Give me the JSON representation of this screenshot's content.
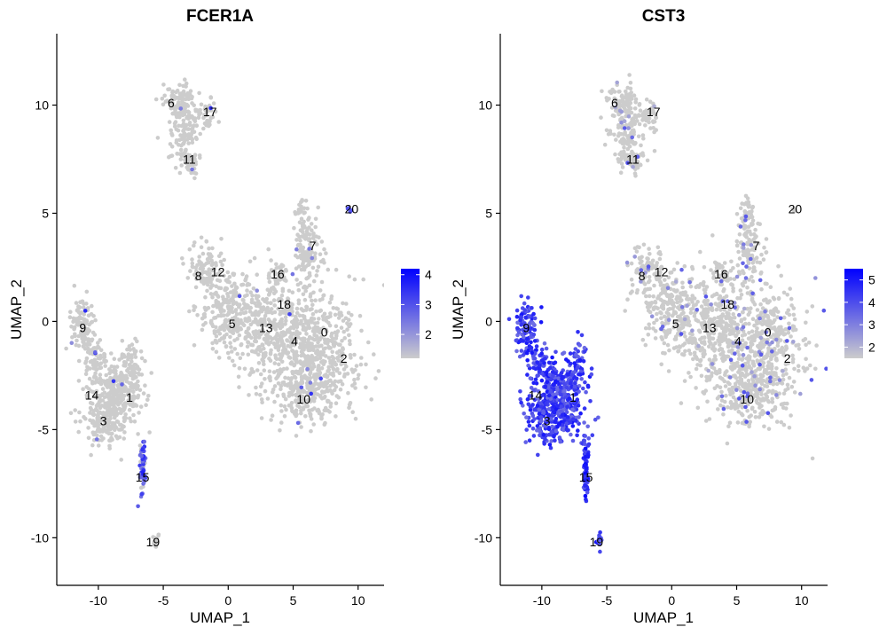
{
  "chart_data": [
    {
      "type": "scatter",
      "title": "FCER1A",
      "xlabel": "UMAP_1",
      "ylabel": "UMAP_2",
      "xlim": [
        -13.2,
        12
      ],
      "ylim": [
        -12.2,
        13.3
      ],
      "xticks": [
        -10,
        -5,
        0,
        5,
        10
      ],
      "yticks": [
        -10,
        -5,
        0,
        5,
        10
      ],
      "xtick_labels": [
        "-10",
        "-5",
        "0",
        "5",
        "10"
      ],
      "ytick_labels": [
        "-10",
        "-5",
        "0",
        "5",
        "10"
      ],
      "grid": false,
      "color_low": "#cccccc",
      "color_high": "#0000ff",
      "legend": {
        "position": "right",
        "min": 1.2,
        "max": 4.2,
        "ticks": [
          2,
          3,
          4
        ],
        "tick_labels": [
          "2",
          "3",
          "4"
        ]
      },
      "clusters": [
        {
          "label": "0",
          "x": 7.4,
          "y": -0.5
        },
        {
          "label": "1",
          "x": -7.6,
          "y": -3.5
        },
        {
          "label": "2",
          "x": 8.9,
          "y": -1.7
        },
        {
          "label": "3",
          "x": -9.6,
          "y": -4.6
        },
        {
          "label": "4",
          "x": 5.1,
          "y": -0.9
        },
        {
          "label": "5",
          "x": 0.3,
          "y": -0.1
        },
        {
          "label": "6",
          "x": -4.4,
          "y": 10.1
        },
        {
          "label": "7",
          "x": 6.5,
          "y": 3.5
        },
        {
          "label": "8",
          "x": -2.3,
          "y": 2.1
        },
        {
          "label": "9",
          "x": -11.2,
          "y": -0.3
        },
        {
          "label": "10",
          "x": 5.8,
          "y": -3.6
        },
        {
          "label": "11",
          "x": -3.0,
          "y": 7.5
        },
        {
          "label": "12",
          "x": -0.8,
          "y": 2.3
        },
        {
          "label": "13",
          "x": 2.9,
          "y": -0.3
        },
        {
          "label": "14",
          "x": -10.5,
          "y": -3.4
        },
        {
          "label": "15",
          "x": -6.6,
          "y": -7.2
        },
        {
          "label": "16",
          "x": 3.8,
          "y": 2.2
        },
        {
          "label": "17",
          "x": -1.4,
          "y": 9.7
        },
        {
          "label": "18",
          "x": 4.3,
          "y": 0.8
        },
        {
          "label": "19",
          "x": -5.8,
          "y": -10.2
        },
        {
          "label": "20",
          "x": 9.5,
          "y": 5.2
        }
      ]
    },
    {
      "type": "scatter",
      "title": "CST3",
      "xlabel": "UMAP_1",
      "ylabel": "UMAP_2",
      "xlim": [
        -13.2,
        12
      ],
      "ylim": [
        -12.2,
        13.3
      ],
      "xticks": [
        -10,
        -5,
        0,
        5,
        10
      ],
      "yticks": [
        -10,
        -5,
        0,
        5,
        10
      ],
      "xtick_labels": [
        "-10",
        "-5",
        "0",
        "5",
        "10"
      ],
      "ytick_labels": [
        "-10",
        "-5",
        "0",
        "5",
        "10"
      ],
      "grid": false,
      "color_low": "#cccccc",
      "color_high": "#0000ff",
      "legend": {
        "position": "right",
        "min": 1.5,
        "max": 5.5,
        "ticks": [
          2,
          3,
          4,
          5
        ],
        "tick_labels": [
          "2",
          "3",
          "4",
          "5"
        ]
      },
      "clusters": [
        {
          "label": "0",
          "x": 7.4,
          "y": -0.5
        },
        {
          "label": "1",
          "x": -7.6,
          "y": -3.5
        },
        {
          "label": "2",
          "x": 8.9,
          "y": -1.7
        },
        {
          "label": "3",
          "x": -9.6,
          "y": -4.6
        },
        {
          "label": "4",
          "x": 5.1,
          "y": -0.9
        },
        {
          "label": "5",
          "x": 0.3,
          "y": -0.1
        },
        {
          "label": "6",
          "x": -4.4,
          "y": 10.1
        },
        {
          "label": "7",
          "x": 6.5,
          "y": 3.5
        },
        {
          "label": "8",
          "x": -2.3,
          "y": 2.1
        },
        {
          "label": "9",
          "x": -11.2,
          "y": -0.3
        },
        {
          "label": "10",
          "x": 5.8,
          "y": -3.6
        },
        {
          "label": "11",
          "x": -3.0,
          "y": 7.5
        },
        {
          "label": "12",
          "x": -0.8,
          "y": 2.3
        },
        {
          "label": "13",
          "x": 2.9,
          "y": -0.3
        },
        {
          "label": "14",
          "x": -10.5,
          "y": -3.4
        },
        {
          "label": "15",
          "x": -6.6,
          "y": -7.2
        },
        {
          "label": "16",
          "x": 3.8,
          "y": 2.2
        },
        {
          "label": "17",
          "x": -1.4,
          "y": 9.7
        },
        {
          "label": "18",
          "x": 4.3,
          "y": 0.8
        },
        {
          "label": "19",
          "x": -5.8,
          "y": -10.2
        },
        {
          "label": "20",
          "x": 9.5,
          "y": 5.2
        }
      ]
    }
  ]
}
